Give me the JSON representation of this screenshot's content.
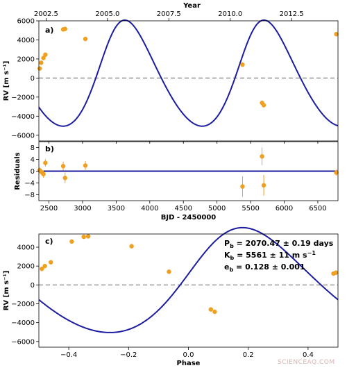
{
  "watermark": "SCIENCEAQ.COM",
  "colors": {
    "model": "#1c1ca0",
    "points": "#f0a020",
    "zero_line": "#808080",
    "watermark": "#d9b3b3"
  },
  "chart_data": [
    {
      "panel": "a",
      "panel_label": "a)",
      "type": "line",
      "xlabel": "BJD - 2450000",
      "ylabel": "RV [m s⁻¹]",
      "top_axis": {
        "label": "Year",
        "ticks": [
          2002.5,
          2005.0,
          2007.5,
          2010.0,
          2012.5
        ],
        "tick_labels": [
          "2002.5",
          "2005.0",
          "2007.5",
          "2010.0",
          "2012.5"
        ],
        "jd_offset": 2450000,
        "year_epoch_jd": 2451544.5,
        "year_epoch": 2000.0,
        "days_per_year": 365.25
      },
      "xlim": [
        2350,
        6800
      ],
      "ylim": [
        -6600,
        6000
      ],
      "xticks": [
        2500,
        3000,
        3500,
        4000,
        4500,
        5000,
        5500,
        6000,
        6500
      ],
      "yticks": [
        -6000,
        -4000,
        -2000,
        0,
        2000,
        4000,
        6000
      ],
      "ytick_labels": [
        "−6000",
        "−4000",
        "−2000",
        "0",
        "2000",
        "4000",
        "6000"
      ],
      "zero_line": true,
      "model": {
        "name": "",
        "period": 2070.47,
        "K": 5561,
        "e": 0.128,
        "omega_deg": -44,
        "t_peri": 3430,
        "gamma": 0
      },
      "points": [
        {
          "x": 2363,
          "y": 1000
        },
        {
          "x": 2384,
          "y": 1600
        },
        {
          "x": 2418,
          "y": 2100
        },
        {
          "x": 2447,
          "y": 2450
        },
        {
          "x": 2712,
          "y": 5100
        },
        {
          "x": 2740,
          "y": 5150
        },
        {
          "x": 3042,
          "y": 4100
        },
        {
          "x": 5380,
          "y": 1400
        },
        {
          "x": 5670,
          "y": -2600
        },
        {
          "x": 5696,
          "y": -2850
        },
        {
          "x": 6775,
          "y": 4600
        }
      ]
    },
    {
      "panel": "b",
      "panel_label": "b)",
      "type": "scatter",
      "xlabel": "BJD - 2450000",
      "ylabel": "Residuals",
      "xlim": [
        2350,
        6800
      ],
      "ylim": [
        -10,
        10
      ],
      "xticks": [
        2500,
        3000,
        3500,
        4000,
        4500,
        5000,
        5500,
        6000,
        6500
      ],
      "yticks": [
        -8,
        -4,
        0,
        4,
        8
      ],
      "ytick_labels": [
        "−8",
        "−4",
        "0",
        "4",
        "8"
      ],
      "zero_line_solid": true,
      "points": [
        {
          "x": 2363,
          "y": 0.3,
          "err": 1.0
        },
        {
          "x": 2384,
          "y": -0.2,
          "err": 1.0
        },
        {
          "x": 2418,
          "y": -1.0,
          "err": 1.2
        },
        {
          "x": 2447,
          "y": 2.8,
          "err": 1.3
        },
        {
          "x": 2712,
          "y": 1.7,
          "err": 1.5
        },
        {
          "x": 2740,
          "y": -2.3,
          "err": 1.8
        },
        {
          "x": 3042,
          "y": 1.9,
          "err": 1.5
        },
        {
          "x": 5380,
          "y": -5.2,
          "err": 3.5
        },
        {
          "x": 5670,
          "y": 5.0,
          "err": 3.0
        },
        {
          "x": 5696,
          "y": -4.8,
          "err": 3.5
        },
        {
          "x": 6775,
          "y": -0.5,
          "err": 1.0
        }
      ]
    },
    {
      "panel": "c",
      "panel_label": "c)",
      "type": "line",
      "xlabel": "Phase",
      "ylabel": "RV [m s⁻¹]",
      "xlim": [
        -0.5,
        0.5
      ],
      "ylim": [
        -6600,
        5400
      ],
      "xticks": [
        -0.4,
        -0.2,
        0.0,
        0.2,
        0.4
      ],
      "xtick_labels": [
        "−0.4",
        "−0.2",
        "0.0",
        "0.2",
        "0.4"
      ],
      "yticks": [
        -6000,
        -4000,
        -2000,
        0,
        2000,
        4000
      ],
      "ytick_labels": [
        "−6000",
        "−4000",
        "−2000",
        "0",
        "2000",
        "4000"
      ],
      "zero_line": true,
      "points": [
        {
          "x": -0.49,
          "y": 1700
        },
        {
          "x": -0.48,
          "y": 2000
        },
        {
          "x": -0.46,
          "y": 2400
        },
        {
          "x": -0.39,
          "y": 4600
        },
        {
          "x": -0.35,
          "y": 5100
        },
        {
          "x": -0.335,
          "y": 5150
        },
        {
          "x": -0.19,
          "y": 4100
        },
        {
          "x": -0.065,
          "y": 1400
        },
        {
          "x": 0.075,
          "y": -2600
        },
        {
          "x": 0.088,
          "y": -2850
        },
        {
          "x": 0.485,
          "y": 1200
        },
        {
          "x": 0.493,
          "y": 1300
        }
      ],
      "parameters": [
        {
          "sym": "P",
          "sub": "b",
          "text": " = 2070.47 ± 0.19 days"
        },
        {
          "sym": "K",
          "sub": "b",
          "text": " = 5561 ± 11 m s",
          "sup": "−1"
        },
        {
          "sym": "e",
          "sub": "b",
          "text": " = 0.128 ± 0.001"
        }
      ]
    }
  ]
}
